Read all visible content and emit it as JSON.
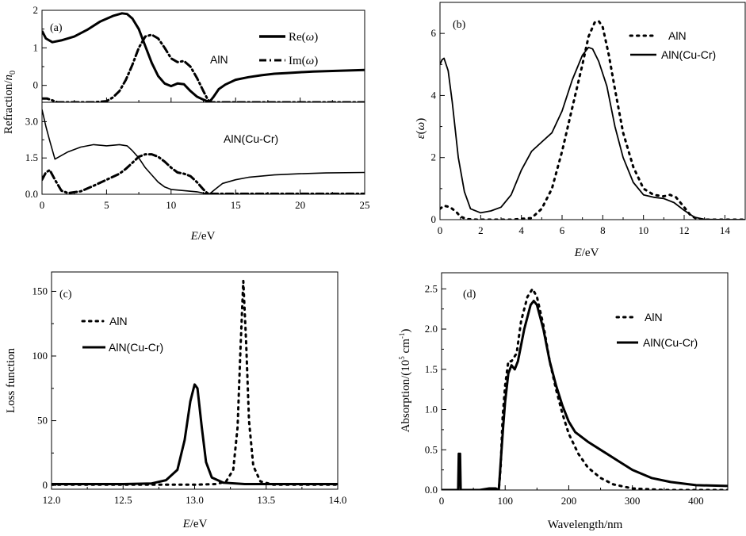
{
  "chart_data": [
    {
      "panel": "(a)",
      "type": "line",
      "title": "",
      "xlabel_italic": "E",
      "xlabel_unit": "/eV",
      "ylabel": "Refraction/",
      "ylabel_italic": "n",
      "ylabel_sub": "0",
      "subplots": [
        {
          "annotation": "AlN",
          "ylim": [
            -0.45,
            2.0
          ],
          "yticks": [
            0,
            1,
            2
          ],
          "legend": [
            {
              "name": "Re(",
              "italic": "ω",
              "close": ")",
              "style": "solid"
            },
            {
              "name": "Im(",
              "italic": "ω",
              "close": ")",
              "style": "dashdot"
            }
          ],
          "series": [
            {
              "name": "Re",
              "style": "solid",
              "width": 3,
              "x": [
                0,
                0.3,
                0.8,
                1.5,
                2.5,
                3.5,
                4.5,
                5.5,
                6.2,
                6.6,
                7.0,
                7.5,
                8.0,
                8.5,
                9.0,
                9.5,
                10.0,
                10.5,
                11.0,
                11.5,
                12.0,
                12.5,
                12.8,
                13.0,
                13.3,
                13.7,
                14.2,
                15,
                16,
                17,
                18,
                19,
                20,
                21,
                22,
                23,
                24,
                25
              ],
              "y": [
                1.45,
                1.25,
                1.15,
                1.2,
                1.3,
                1.48,
                1.7,
                1.85,
                1.92,
                1.9,
                1.78,
                1.5,
                1.05,
                0.6,
                0.25,
                0.05,
                -0.02,
                0.05,
                0.03,
                -0.15,
                -0.3,
                -0.38,
                -0.42,
                -0.43,
                -0.3,
                -0.1,
                0.02,
                0.15,
                0.22,
                0.27,
                0.31,
                0.33,
                0.35,
                0.37,
                0.38,
                0.39,
                0.4,
                0.41
              ]
            },
            {
              "name": "Im",
              "style": "dashdot",
              "width": 3,
              "x": [
                0,
                0.4,
                0.8,
                1.2,
                2,
                3,
                4,
                5,
                5.5,
                6,
                6.5,
                7,
                7.5,
                8,
                8.5,
                9,
                9.5,
                10,
                10.5,
                11,
                11.5,
                12,
                12.5,
                12.8,
                13.0,
                13.2,
                14,
                16,
                18,
                20,
                22,
                25
              ],
              "y": [
                -0.35,
                -0.35,
                -0.4,
                -0.45,
                -0.45,
                -0.45,
                -0.45,
                -0.42,
                -0.32,
                -0.15,
                0.15,
                0.55,
                1.0,
                1.3,
                1.35,
                1.25,
                1.0,
                0.72,
                0.62,
                0.65,
                0.5,
                0.2,
                -0.15,
                -0.35,
                -0.45,
                -0.45,
                -0.45,
                -0.45,
                -0.45,
                -0.45,
                -0.45,
                -0.45
              ]
            }
          ]
        },
        {
          "annotation": "AlN(Cu-Cr)",
          "ylim": [
            0,
            3.8
          ],
          "yticks": [
            0.0,
            1.5,
            3.0
          ],
          "series": [
            {
              "name": "Re",
              "style": "solid",
              "width": 1.6,
              "x": [
                0,
                0.3,
                0.6,
                1,
                2,
                3,
                4,
                5,
                6,
                6.6,
                7,
                7.5,
                8,
                8.5,
                9,
                9.5,
                10,
                11,
                12,
                12.5,
                13,
                13.4,
                14,
                15,
                16,
                18,
                20,
                22,
                25
              ],
              "y": [
                3.5,
                2.8,
                2.2,
                1.45,
                1.75,
                1.95,
                2.05,
                2.0,
                2.05,
                2.0,
                1.8,
                1.5,
                1.1,
                0.8,
                0.5,
                0.3,
                0.2,
                0.15,
                0.1,
                0.05,
                0.02,
                0.2,
                0.45,
                0.6,
                0.7,
                0.8,
                0.85,
                0.88,
                0.9
              ]
            },
            {
              "name": "Im",
              "style": "dashdot",
              "width": 3,
              "x": [
                0,
                0.3,
                0.6,
                1,
                1.5,
                2,
                3,
                4,
                5,
                6,
                6.5,
                7,
                7.5,
                8,
                8.5,
                9,
                9.5,
                10,
                10.5,
                11,
                11.5,
                12,
                12.5,
                12.8,
                13.0,
                13.3,
                14,
                16,
                18,
                20,
                22,
                25
              ],
              "y": [
                0.6,
                0.9,
                1.0,
                0.6,
                0.15,
                0.05,
                0.12,
                0.35,
                0.6,
                0.85,
                1.05,
                1.3,
                1.55,
                1.65,
                1.65,
                1.55,
                1.35,
                1.1,
                0.9,
                0.85,
                0.75,
                0.5,
                0.2,
                0.05,
                0.02,
                0.02,
                0.02,
                0.02,
                0.02,
                0.02,
                0.02,
                0.02
              ]
            }
          ]
        }
      ],
      "xlim": [
        0,
        25
      ],
      "xticks": [
        0,
        5,
        10,
        15,
        20,
        25
      ]
    },
    {
      "panel": "(b)",
      "type": "line",
      "title": "",
      "xlabel_italic": "E",
      "xlabel_unit": "/eV",
      "ylabel_italic": "ε",
      "ylabel_paren_italic": "ω",
      "xlim": [
        0,
        15
      ],
      "ylim": [
        0,
        7
      ],
      "xticks": [
        0,
        2,
        4,
        6,
        8,
        10,
        12,
        14
      ],
      "yticks": [
        0,
        2,
        4,
        6
      ],
      "legend": [
        {
          "name": "AlN",
          "style": "dot"
        },
        {
          "name": "AlN(Cu-Cr)",
          "style": "solid"
        }
      ],
      "series": [
        {
          "name": "AlN",
          "style": "dot",
          "width": 3,
          "x": [
            0,
            0.2,
            0.5,
            0.8,
            1.0,
            1.3,
            1.8,
            2.5,
            3.5,
            4.5,
            5.0,
            5.5,
            6.0,
            6.5,
            7.0,
            7.3,
            7.6,
            7.8,
            8.0,
            8.3,
            8.6,
            9.0,
            9.5,
            10.0,
            10.5,
            11.0,
            11.3,
            11.6,
            12.0,
            12.3,
            12.6,
            13,
            14,
            15
          ],
          "y": [
            0.35,
            0.45,
            0.4,
            0.25,
            0.1,
            0.02,
            0.0,
            0.0,
            0.0,
            0.05,
            0.35,
            1.0,
            2.2,
            3.6,
            5.0,
            5.9,
            6.35,
            6.4,
            6.2,
            5.3,
            4.2,
            2.8,
            1.7,
            1.0,
            0.8,
            0.75,
            0.8,
            0.72,
            0.4,
            0.15,
            0.03,
            0,
            0,
            0
          ]
        },
        {
          "name": "AlN(Cu-Cr)",
          "style": "solid",
          "width": 1.8,
          "x": [
            0,
            0.1,
            0.2,
            0.4,
            0.6,
            0.9,
            1.2,
            1.5,
            2.0,
            2.5,
            3.0,
            3.5,
            4.0,
            4.5,
            5.0,
            5.5,
            6.0,
            6.5,
            7.0,
            7.3,
            7.5,
            7.8,
            8.2,
            8.6,
            9.0,
            9.5,
            10.0,
            10.5,
            11.0,
            11.5,
            12.0,
            12.5,
            13,
            14,
            15
          ],
          "y": [
            5.0,
            5.15,
            5.2,
            4.8,
            3.8,
            2.0,
            0.9,
            0.35,
            0.22,
            0.28,
            0.4,
            0.8,
            1.6,
            2.2,
            2.5,
            2.8,
            3.5,
            4.5,
            5.3,
            5.55,
            5.5,
            5.1,
            4.3,
            3.0,
            2.0,
            1.2,
            0.8,
            0.72,
            0.68,
            0.55,
            0.3,
            0.08,
            0.01,
            0,
            0
          ]
        }
      ]
    },
    {
      "panel": "(c)",
      "type": "line",
      "title": "",
      "xlabel_italic": "E",
      "xlabel_unit": "/eV",
      "ylabel": "Loss function",
      "xlim": [
        12.0,
        14.0
      ],
      "ylim": [
        -3,
        165
      ],
      "xticks": [
        12.0,
        12.5,
        13.0,
        13.5,
        14.0
      ],
      "yticks": [
        0,
        50,
        100,
        150
      ],
      "legend": [
        {
          "name": "AlN",
          "style": "dot"
        },
        {
          "name": "AlN(Cu-Cr)",
          "style": "solid"
        }
      ],
      "series": [
        {
          "name": "AlN",
          "style": "dot",
          "width": 3,
          "x": [
            12.0,
            12.5,
            13.0,
            13.15,
            13.22,
            13.27,
            13.3,
            13.32,
            13.34,
            13.36,
            13.38,
            13.41,
            13.46,
            13.55,
            14.0
          ],
          "y": [
            0.5,
            0.5,
            0.5,
            1,
            3,
            12,
            45,
            105,
            158,
            110,
            50,
            15,
            3,
            0.5,
            0.5
          ]
        },
        {
          "name": "AlN(Cu-Cr)",
          "style": "solid",
          "width": 3,
          "x": [
            12.0,
            12.5,
            12.7,
            12.8,
            12.88,
            12.93,
            12.97,
            13.0,
            13.02,
            13.05,
            13.08,
            13.12,
            13.2,
            13.35,
            14.0
          ],
          "y": [
            1,
            1,
            1.5,
            4,
            12,
            35,
            65,
            78,
            75,
            45,
            18,
            6,
            2,
            1,
            1
          ]
        }
      ]
    },
    {
      "panel": "(d)",
      "type": "line",
      "title": "",
      "xlabel": "Wavelength/nm",
      "ylabel": "Absorption/(10",
      "ylabel_sup": "5",
      "ylabel_tail": " cm",
      "ylabel_sup2": "-1",
      "ylabel_close": ")",
      "xlim": [
        0,
        450
      ],
      "ylim": [
        0,
        2.7
      ],
      "xticks": [
        0,
        100,
        200,
        300,
        400
      ],
      "yticks": [
        0.0,
        0.5,
        1.0,
        1.5,
        2.0,
        2.5
      ],
      "legend": [
        {
          "name": "AlN",
          "style": "dot"
        },
        {
          "name": "AlN(Cu-Cr)",
          "style": "solid"
        }
      ],
      "series": [
        {
          "name": "AlN",
          "style": "dot",
          "width": 3,
          "x": [
            0,
            80,
            90,
            93,
            96,
            100,
            105,
            110,
            118,
            125,
            135,
            143,
            150,
            160,
            170,
            180,
            190,
            200,
            215,
            230,
            250,
            270,
            300,
            350,
            450
          ],
          "y": [
            0,
            0,
            0,
            0.3,
            0.9,
            1.3,
            1.6,
            1.6,
            1.7,
            2.1,
            2.4,
            2.5,
            2.4,
            2.05,
            1.6,
            1.25,
            0.95,
            0.7,
            0.45,
            0.28,
            0.15,
            0.07,
            0.02,
            0,
            0
          ]
        },
        {
          "name": "AlN(Cu-Cr)",
          "style": "solid",
          "width": 3,
          "x": [
            0,
            20,
            26,
            27,
            28,
            29,
            30,
            32,
            40,
            60,
            75,
            85,
            90,
            93,
            97,
            100,
            105,
            110,
            115,
            120,
            130,
            140,
            145,
            150,
            160,
            170,
            180,
            190,
            200,
            210,
            230,
            250,
            280,
            300,
            330,
            360,
            400,
            450
          ],
          "y": [
            0,
            0,
            0,
            0.45,
            0.25,
            0.45,
            0,
            0,
            0,
            0,
            0.02,
            0.02,
            0,
            0.35,
            0.8,
            1.1,
            1.45,
            1.55,
            1.5,
            1.6,
            2.0,
            2.3,
            2.35,
            2.3,
            2.0,
            1.6,
            1.3,
            1.05,
            0.85,
            0.72,
            0.6,
            0.5,
            0.35,
            0.25,
            0.15,
            0.1,
            0.06,
            0.05
          ]
        }
      ]
    }
  ]
}
